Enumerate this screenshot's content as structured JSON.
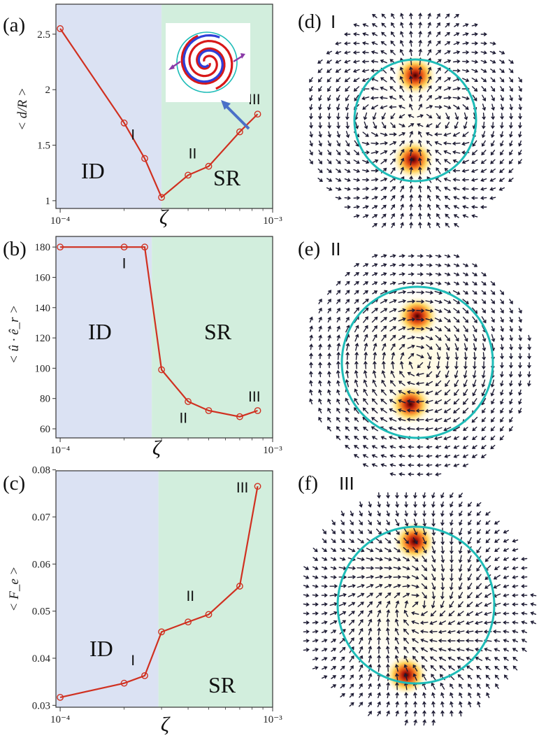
{
  "colors": {
    "id_region": "#dbe2f3",
    "sr_region": "#d2eedd",
    "line": "#d03020",
    "circle": "#1ebcb8",
    "arrow_inset": "#4a70c8",
    "quiver": "#1c1a33"
  },
  "x_axis_symbol": "ζ",
  "x_ticks": [
    "10⁻⁴",
    "10⁻³"
  ],
  "chart_data": [
    {
      "id": "a",
      "type": "line",
      "panel_label": "(a)",
      "ylabel": "< d/R >",
      "xlabel": "ζ",
      "xscale": "log",
      "xlim": [
        9.55e-05,
        0.001
      ],
      "ylim": [
        0.93,
        2.77
      ],
      "yticks": [
        1,
        1.5,
        2,
        2.5
      ],
      "ytick_labels": [
        "1",
        "1.5",
        "2",
        "2.5"
      ],
      "regime_boundary": 0.0003,
      "regions": [
        "ID",
        "SR"
      ],
      "x": [
        0.0001,
        0.0002,
        0.00025,
        0.0003,
        0.0004,
        0.0005,
        0.0007,
        0.00085
      ],
      "y": [
        2.55,
        1.7,
        1.38,
        1.03,
        1.23,
        1.31,
        1.62,
        1.78
      ],
      "annotations": [
        {
          "text": "I",
          "x": 0.00022,
          "y": 1.55
        },
        {
          "text": "II",
          "x": 0.00042,
          "y": 1.38
        },
        {
          "text": "III",
          "x": 0.00082,
          "y": 1.87
        }
      ],
      "has_inset": true
    },
    {
      "id": "b",
      "type": "line",
      "panel_label": "(b)",
      "ylabel": "< û · ê_r >",
      "xlabel": "ζ",
      "xscale": "log",
      "xlim": [
        9.55e-05,
        0.001
      ],
      "ylim": [
        54,
        187
      ],
      "yticks": [
        60,
        80,
        100,
        120,
        140,
        160,
        180
      ],
      "ytick_labels": [
        "60",
        "80",
        "100",
        "120",
        "140",
        "160",
        "180"
      ],
      "regime_boundary": 0.00027,
      "regions": [
        "ID",
        "SR"
      ],
      "x": [
        0.0001,
        0.0002,
        0.00025,
        0.0003,
        0.0004,
        0.0005,
        0.0007,
        0.00085
      ],
      "y": [
        180,
        180,
        180,
        99,
        78,
        72,
        68,
        72
      ],
      "annotations": [
        {
          "text": "I",
          "x": 0.0002,
          "y": 166
        },
        {
          "text": "II",
          "x": 0.00038,
          "y": 64
        },
        {
          "text": "III",
          "x": 0.00082,
          "y": 78
        }
      ],
      "has_inset": false
    },
    {
      "id": "c",
      "type": "line",
      "panel_label": "(c)",
      "ylabel": "< F_e >",
      "xlabel": "ζ",
      "xscale": "log",
      "xlim": [
        9.55e-05,
        0.001
      ],
      "ylim": [
        0.0296,
        0.0798
      ],
      "yticks": [
        0.03,
        0.04,
        0.05,
        0.06,
        0.07,
        0.08
      ],
      "ytick_labels": [
        "0.03",
        "0.04",
        "0.05",
        "0.06",
        "0.07",
        "0.08"
      ],
      "regime_boundary": 0.00029,
      "regions": [
        "ID",
        "SR"
      ],
      "x": [
        0.0001,
        0.0002,
        0.00025,
        0.0003,
        0.0004,
        0.0005,
        0.0007,
        0.00085
      ],
      "y": [
        0.0317,
        0.0347,
        0.0363,
        0.0456,
        0.0477,
        0.0493,
        0.0553,
        0.0765
      ],
      "annotations": [
        {
          "text": "I",
          "x": 0.00022,
          "y": 0.0385
        },
        {
          "text": "II",
          "x": 0.00041,
          "y": 0.0522
        },
        {
          "text": "III",
          "x": 0.00072,
          "y": 0.0752
        }
      ],
      "has_inset": false
    }
  ],
  "fields": [
    {
      "id": "d",
      "label": "(d)",
      "roman": "I",
      "pattern": "dipole"
    },
    {
      "id": "e",
      "label": "(e)",
      "roman": "II",
      "pattern": "rotating"
    },
    {
      "id": "f",
      "label": "(f)",
      "roman": "III",
      "pattern": "spiral"
    }
  ]
}
